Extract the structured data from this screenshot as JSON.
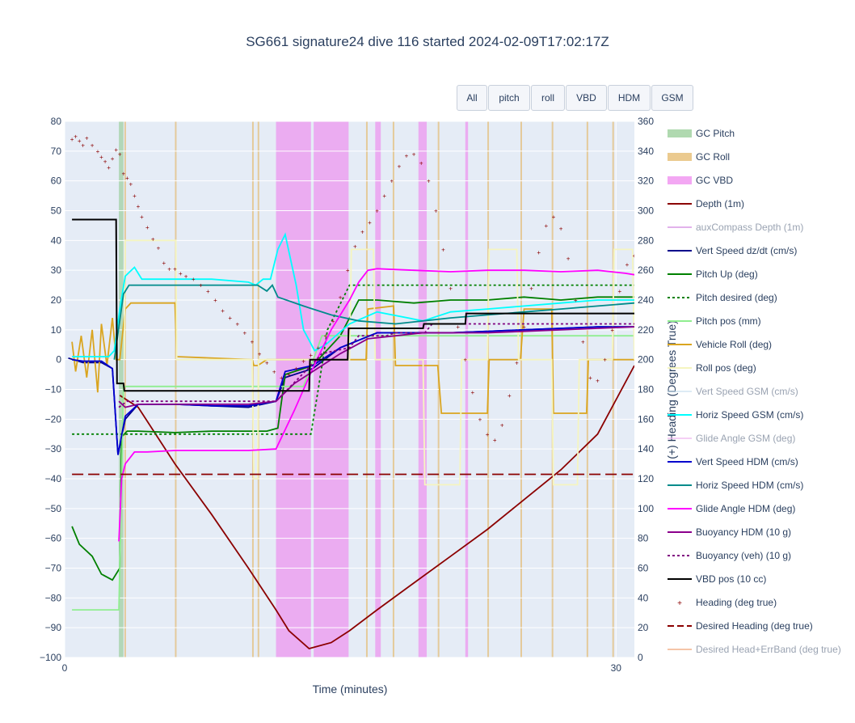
{
  "title": "SG661 signature24 dive 116 started 2024-02-09T17:02:17Z",
  "buttons": [
    "All",
    "pitch",
    "roll",
    "VBD",
    "HDM",
    "GSM"
  ],
  "chart_data": {
    "type": "line",
    "title": "SG661 signature24 dive 116 started 2024-02-09T17:02:17Z",
    "xlabel": "Time (minutes)",
    "ylabel_right": "(+) Heading (Degrees True)",
    "xlim": [
      0,
      31
    ],
    "ylim_left": [
      -100,
      80
    ],
    "ylim_right": [
      0,
      360
    ],
    "xticks": [
      0,
      30
    ],
    "yticks_left": [
      80,
      70,
      60,
      50,
      40,
      30,
      20,
      10,
      0,
      -10,
      -20,
      -30,
      -40,
      -50,
      -60,
      -70,
      -80,
      -90,
      -100
    ],
    "yticks_right": [
      360,
      340,
      320,
      300,
      280,
      260,
      240,
      220,
      200,
      180,
      160,
      140,
      120,
      100,
      80,
      60,
      40,
      20,
      0
    ],
    "legend_position": "right",
    "grid": true,
    "background_color": "#e5ecf6",
    "bands": [
      {
        "name": "GC Pitch",
        "color": "#8fc98f",
        "ranges": [
          [
            2.95,
            3.2
          ]
        ]
      },
      {
        "name": "GC Roll",
        "color": "#e3b45f",
        "ranges": [
          [
            3.25,
            3.32
          ],
          [
            6.0,
            6.08
          ],
          [
            10.2,
            10.28
          ],
          [
            10.5,
            10.58
          ],
          [
            16.4,
            16.48
          ],
          [
            17.85,
            17.93
          ],
          [
            20.3,
            20.38
          ],
          [
            23.0,
            23.08
          ],
          [
            24.8,
            24.88
          ],
          [
            26.5,
            26.58
          ],
          [
            28.4,
            28.48
          ],
          [
            29.8,
            29.88
          ]
        ]
      },
      {
        "name": "GC VBD",
        "color": "#ee82ee",
        "ranges": [
          [
            11.5,
            13.4
          ],
          [
            13.55,
            15.45
          ],
          [
            16.9,
            17.2
          ],
          [
            19.25,
            19.7
          ],
          [
            21.8,
            21.95
          ]
        ]
      }
    ],
    "series": [
      {
        "name": "Depth (1m)",
        "axis": "left",
        "color": "#8b0000",
        "x": [
          3.0,
          4.0,
          6.0,
          8.0,
          10.0,
          11.5,
          12.2,
          13.3,
          14.5,
          15.5,
          17.0,
          19.0,
          21.0,
          23.0,
          25.0,
          27.0,
          29.0,
          31.0
        ],
        "y": [
          -12,
          -16,
          -35,
          -52,
          -70,
          -84,
          -91,
          -97,
          -95,
          -91,
          -84,
          -75,
          -66,
          -57,
          -47,
          -37,
          -25,
          -2
        ]
      },
      {
        "name": "auxCompass Depth (1m)",
        "axis": "left",
        "color": "#cf7fdf",
        "hidden": true,
        "x": [],
        "y": []
      },
      {
        "name": "Vert Speed dz/dt (cm/s)",
        "axis": "left",
        "color": "#00008b",
        "x": [
          0.2,
          1.0,
          2.0,
          2.6,
          2.9,
          3.3,
          4.0,
          6.0,
          8.0,
          10.0,
          11.5,
          12.0,
          13.5,
          15.0,
          17.0,
          19.0,
          21.0,
          23.0,
          25.0,
          27.0,
          29.0,
          31.0
        ],
        "y": [
          0.5,
          -1,
          -1,
          -3,
          -32,
          -20,
          -15,
          -15,
          -15.5,
          -16,
          -14,
          -6,
          -3,
          4,
          9,
          9,
          9,
          9.5,
          10,
          10.5,
          11,
          11
        ]
      },
      {
        "name": "Pitch Up (deg)",
        "axis": "left",
        "color": "#008000",
        "x": [
          0.4,
          0.8,
          1.5,
          2.0,
          2.6,
          3.0,
          3.1,
          3.4,
          4.0,
          6.0,
          8.0,
          10.0,
          11.0,
          11.6,
          12.0,
          13.5,
          15.0,
          16.0,
          17.0,
          19.0,
          21.0,
          23.0,
          25.0,
          27.0,
          29.0,
          31.0
        ],
        "y": [
          -56,
          -62,
          -66,
          -72,
          -74,
          -70,
          -26,
          -24,
          -24,
          -24.5,
          -24,
          -24,
          -24,
          -23,
          -5,
          -2,
          8,
          20,
          20,
          19,
          20,
          20,
          21,
          20,
          21,
          21
        ]
      },
      {
        "name": "Pitch desired (deg)",
        "axis": "left",
        "color": "#008000",
        "dash": true,
        "x": [
          0.4,
          13.4,
          13.8,
          14.3,
          15.5,
          31.0
        ],
        "y": [
          -25,
          -25,
          -10,
          10,
          25,
          25
        ]
      },
      {
        "name": "Pitch pos (mm)",
        "axis": "left",
        "color": "#90ee90",
        "x": [
          0.4,
          2.95,
          3.2,
          10.0,
          11.5,
          13.0,
          14.0,
          16.0,
          31.0
        ],
        "y": [
          -84,
          -84,
          -9,
          -9,
          -9,
          -9,
          8,
          8,
          8
        ]
      },
      {
        "name": "Vehicle Roll (deg)",
        "axis": "left",
        "color": "#daa520",
        "x": [
          0.4,
          0.6,
          0.9,
          1.2,
          1.5,
          1.8,
          2.0,
          2.3,
          2.6,
          2.8,
          3.0,
          3.3,
          3.6,
          6.0,
          6.1,
          10.2,
          10.3,
          10.5,
          11.0,
          14.0,
          16.4,
          16.5,
          17.9,
          18.0,
          20.3,
          20.5,
          22.0,
          23.0,
          23.1,
          24.8,
          25.0,
          26.5,
          26.6,
          28.0,
          28.4,
          28.5,
          29.8,
          29.9,
          31.0
        ],
        "y": [
          6,
          -4,
          8,
          -6,
          10,
          -11,
          12,
          -2,
          14,
          0,
          0,
          17,
          19,
          19,
          1,
          0,
          -2,
          -2,
          0,
          0,
          0,
          17,
          18,
          -2,
          -2,
          -18,
          -18,
          -18,
          0,
          0,
          17,
          17,
          -18,
          -18,
          -18,
          0,
          0,
          0,
          0
        ]
      },
      {
        "name": "Roll pos (deg)",
        "axis": "left",
        "color": "#f5f5c0",
        "x": [
          3.25,
          3.3,
          6.05,
          6.1,
          10.2,
          10.3,
          10.5,
          10.55,
          15.5,
          15.6,
          16.8,
          16.9,
          19.5,
          19.6,
          21.5,
          21.6,
          23.0,
          23.1,
          24.6,
          24.7,
          26.5,
          26.6,
          27.9,
          28.0,
          29.8,
          29.9,
          30.9,
          31.0
        ],
        "y": [
          0,
          40,
          40,
          0,
          0,
          -40,
          -40,
          0,
          0,
          37,
          37,
          0,
          0,
          -42,
          -42,
          0,
          0,
          37,
          37,
          0,
          0,
          -42,
          -42,
          0,
          0,
          37,
          37,
          0
        ]
      },
      {
        "name": "Vert Speed GSM (cm/s)",
        "axis": "left",
        "color": "#c8dff0",
        "hidden": true,
        "x": [],
        "y": []
      },
      {
        "name": "Horiz Speed GSM (cm/s)",
        "axis": "left",
        "color": "#00ffff",
        "x": [
          0.4,
          2.4,
          2.7,
          3.0,
          3.3,
          3.8,
          4.2,
          6.0,
          8.0,
          10.0,
          10.4,
          10.8,
          11.2,
          11.6,
          12.0,
          12.6,
          13.0,
          13.6,
          14.2,
          15.5,
          17.0,
          19.5,
          21.0,
          23.0,
          25.0,
          27.0,
          29.0,
          31.0
        ],
        "y": [
          1,
          1,
          3,
          17,
          28,
          31,
          27,
          27,
          27,
          26,
          25,
          27,
          27,
          37,
          42,
          25,
          10,
          3,
          5,
          12,
          16,
          13,
          16,
          17,
          18,
          19,
          20,
          20
        ]
      },
      {
        "name": "Glide Angle GSM (deg)",
        "axis": "left",
        "color": "#f0b0f0",
        "hidden": true,
        "x": [],
        "y": []
      },
      {
        "name": "Vert Speed HDM (cm/s)",
        "axis": "left",
        "color": "#0000cd",
        "x": [
          0.4,
          1.0,
          2.0,
          2.6,
          2.9,
          3.3,
          4.0,
          6.0,
          8.0,
          10.0,
          11.5,
          12.0,
          13.5,
          15.0,
          17.0,
          19.0,
          21.0,
          23.0,
          25.0,
          27.0,
          29.0,
          31.0
        ],
        "y": [
          0,
          -0.5,
          -0.5,
          -3,
          -32,
          -19,
          -15,
          -15,
          -15.5,
          -15.5,
          -14,
          -4,
          -2,
          4,
          9,
          9,
          9,
          9.5,
          10,
          10.5,
          11,
          11
        ]
      },
      {
        "name": "Horiz Speed HDM (cm/s)",
        "axis": "left",
        "color": "#008b8b",
        "x": [
          2.7,
          3.2,
          3.5,
          6.0,
          8.0,
          10.5,
          11.0,
          11.3,
          11.6,
          13.0,
          14.5,
          16.0,
          18.0,
          19.5,
          21.0,
          23.0,
          25.0,
          27.0,
          29.0,
          31.0
        ],
        "y": [
          0,
          22,
          25,
          25,
          25,
          25,
          23,
          25,
          21,
          18,
          15,
          13,
          12,
          13,
          14,
          15,
          16,
          17,
          18,
          19
        ]
      },
      {
        "name": "Glide Angle HDM (deg)",
        "axis": "left",
        "color": "#ff00ff",
        "x": [
          2.95,
          3.1,
          3.3,
          3.8,
          4.5,
          6.0,
          8.0,
          10.0,
          11.5,
          12.5,
          13.5,
          14.5,
          15.5,
          16.0,
          16.5,
          17.0,
          19.0,
          21.0,
          23.0,
          25.0,
          27.0,
          29.0,
          30.5,
          31.0
        ],
        "y": [
          -61,
          -40,
          -35,
          -31,
          -31,
          -30.5,
          -30.5,
          -30.5,
          -30,
          -17,
          -3,
          10,
          20,
          26,
          30,
          30.5,
          30,
          29.5,
          30,
          30,
          29.5,
          30,
          29,
          28.5
        ]
      },
      {
        "name": "Buoyancy HDM (10 g)",
        "axis": "left",
        "color": "#8b008b",
        "x": [
          2.95,
          3.3,
          4.0,
          6.0,
          8.0,
          10.0,
          11.5,
          12.5,
          13.5,
          15.0,
          16.5,
          18.0,
          19.5,
          21.0,
          23.0,
          25.0,
          27.0,
          29.0,
          31.0
        ],
        "y": [
          -14,
          -16,
          -15,
          -15,
          -15,
          -15,
          -14,
          -8,
          -4,
          2,
          7,
          8,
          9,
          9,
          9,
          9.5,
          10,
          10.5,
          11
        ]
      },
      {
        "name": "Buoyancy (veh) (10 g)",
        "axis": "left",
        "color": "#800080",
        "dash": true,
        "x": [
          2.95,
          3.4,
          4.0,
          10.0,
          11.5,
          13.4,
          14.0,
          15.5,
          16.0,
          17.5,
          18.0,
          19.6,
          20.0,
          31.0
        ],
        "y": [
          -16,
          -14,
          -14,
          -14,
          -14,
          -2,
          2,
          4,
          8,
          8,
          9,
          9,
          12,
          12
        ]
      },
      {
        "name": "VBD pos (10 cc)",
        "axis": "left",
        "color": "#000000",
        "x": [
          0.4,
          2.8,
          2.85,
          3.2,
          3.25,
          13.3,
          13.35,
          15.4,
          15.45,
          19.5,
          19.55,
          21.8,
          21.85,
          31.0
        ],
        "y": [
          47,
          47,
          -8,
          -8,
          -10.5,
          -10.5,
          0,
          0,
          10.5,
          10.5,
          12,
          12,
          15.5,
          15.5
        ]
      },
      {
        "name": "Heading (deg true)",
        "axis": "right",
        "color": "#8b0000",
        "markers": true,
        "x": [
          0.4,
          0.6,
          0.8,
          1.0,
          1.2,
          1.5,
          1.8,
          2.0,
          2.2,
          2.4,
          2.6,
          2.8,
          3.0,
          3.2,
          3.4,
          3.6,
          3.8,
          4.0,
          4.2,
          4.5,
          4.8,
          5.1,
          5.4,
          5.7,
          6.0,
          6.3,
          6.6,
          7.0,
          7.4,
          7.8,
          8.2,
          8.6,
          9.0,
          9.4,
          9.8,
          10.2,
          10.6,
          11.0,
          11.4,
          11.8,
          12.2,
          12.6,
          13.0,
          13.4,
          13.8,
          14.2,
          14.6,
          15.0,
          15.4,
          15.8,
          16.2,
          16.6,
          17.0,
          17.4,
          17.8,
          18.2,
          18.6,
          19.0,
          19.4,
          19.8,
          20.2,
          20.6,
          21.0,
          21.4,
          21.8,
          22.2,
          22.6,
          23.0,
          23.4,
          23.8,
          24.2,
          24.6,
          25.0,
          25.4,
          25.8,
          26.2,
          26.6,
          27.0,
          27.4,
          27.8,
          28.2,
          28.6,
          29.0,
          29.4,
          29.8,
          30.2,
          30.6,
          31.0
        ],
        "y": [
          348,
          350,
          347,
          344,
          349,
          344,
          340,
          336,
          333,
          329,
          335,
          341,
          338,
          325,
          322,
          318,
          310,
          303,
          296,
          289,
          281,
          275,
          265,
          261,
          261,
          258,
          256,
          254,
          250,
          246,
          240,
          233,
          228,
          224,
          218,
          212,
          204,
          198,
          192,
          188,
          190,
          194,
          199,
          203,
          208,
          216,
          226,
          242,
          260,
          276,
          286,
          292,
          300,
          310,
          320,
          330,
          337,
          338,
          332,
          320,
          300,
          274,
          248,
          222,
          200,
          178,
          160,
          150,
          146,
          156,
          176,
          198,
          222,
          248,
          272,
          290,
          296,
          288,
          268,
          240,
          212,
          188,
          186,
          200,
          220,
          246,
          264,
          270
        ]
      },
      {
        "name": "Desired Heading (deg true)",
        "axis": "right",
        "color": "#8b0000",
        "dash": true,
        "x": [
          0.4,
          31.0
        ],
        "y": [
          123,
          123
        ]
      },
      {
        "name": "Desired Head+ErrBand (deg true)",
        "axis": "right",
        "color": "#f0a070",
        "hidden": true,
        "x": [],
        "y": []
      }
    ]
  }
}
